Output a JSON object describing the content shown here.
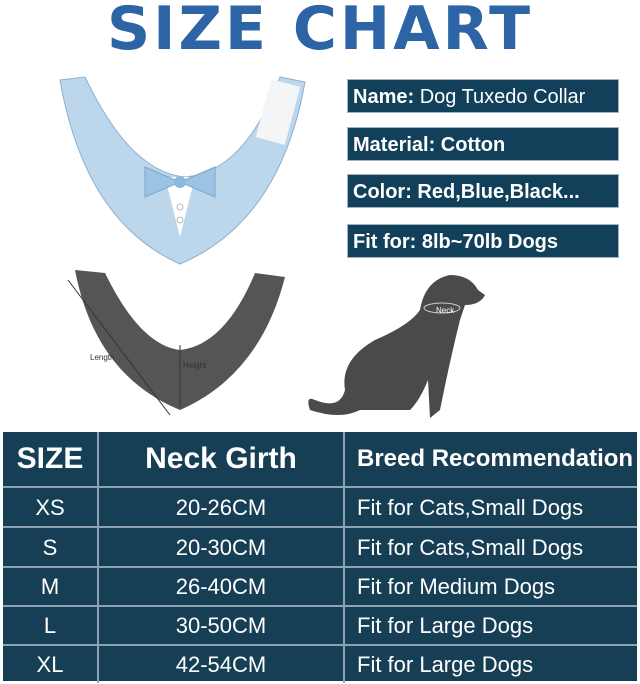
{
  "title": "SIZE CHART",
  "info": [
    {
      "label": "Name:",
      "value": " Dog Tuxedo Collar"
    },
    {
      "label": "Material: Cotton",
      "value": ""
    },
    {
      "label": "Color: Red,Blue,Black...",
      "value": ""
    },
    {
      "label": "Fit for: 8lb~70lb Dogs",
      "value": ""
    }
  ],
  "diagram": {
    "length": "Length",
    "height": "Height",
    "neck": "Neck"
  },
  "table": {
    "headers": [
      "SIZE",
      "Neck Girth",
      "Breed Recommendation"
    ],
    "rows": [
      [
        "XS",
        "20-26CM",
        "Fit for Cats,Small Dogs"
      ],
      [
        "S",
        "20-30CM",
        "Fit for Cats,Small Dogs"
      ],
      [
        "M",
        "26-40CM",
        "Fit for Medium Dogs"
      ],
      [
        "L",
        "30-50CM",
        "Fit for Large Dogs"
      ],
      [
        "XL",
        "42-54CM",
        "Fit for Large Dogs"
      ]
    ]
  },
  "colors": {
    "title": "#2d64a6",
    "panel": "#163f55",
    "collar": "#b9d4ea",
    "dog": "#4a4a4a"
  }
}
